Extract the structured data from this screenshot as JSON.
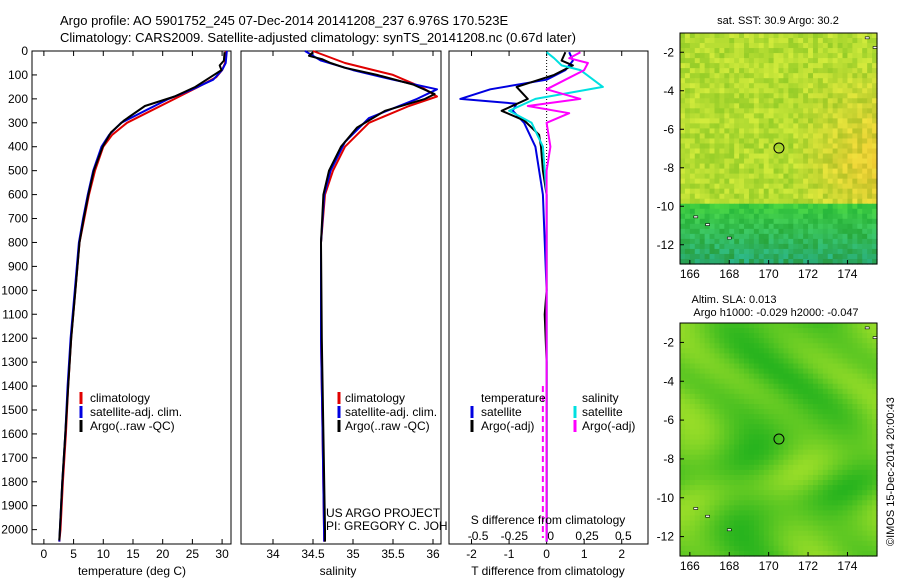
{
  "header": {
    "line1": "Argo profile: AO 5901752_245 07-Dec-2014 20141208_237 6.976S 170.523E",
    "line2": "Climatology: CARS2009. Satellite-adjusted climatology: synTS_20141208.nc (0.67d later)"
  },
  "credit": {
    "project": "US ARGO PROJECT",
    "pi": "PI: GREGORY C. JOHNSON",
    "stamp": "©IMOS 15-Dec-2014 20:00:43"
  },
  "colors": {
    "climatology": "#e00000",
    "satellite": "#0000e0",
    "argo": "#000000",
    "sal_satellite": "#00e0e0",
    "sal_argo": "#ff00ff"
  },
  "chart_data": [
    {
      "type": "line",
      "id": "temperature-profile",
      "xlabel": "temperature (deg C)",
      "ylabel": "depth",
      "xlim": [
        -2,
        31.5
      ],
      "ylim": [
        2060,
        0
      ],
      "xticks": [
        0,
        5,
        10,
        15,
        20,
        25,
        30
      ],
      "yticks": [
        0,
        100,
        200,
        300,
        400,
        500,
        600,
        700,
        800,
        900,
        1000,
        1100,
        1200,
        1300,
        1400,
        1500,
        1600,
        1700,
        1800,
        1900,
        2000
      ],
      "legend": [
        "climatology",
        "satellite-adj. clim.",
        "Argo(..raw -QC)"
      ],
      "legend_colors": [
        "#e00000",
        "#0000e0",
        "#000000"
      ],
      "series": [
        {
          "name": "climatology",
          "color": "#e00000",
          "points": [
            [
              30.6,
              0
            ],
            [
              30.5,
              50
            ],
            [
              30,
              80
            ],
            [
              29,
              110
            ],
            [
              26,
              150
            ],
            [
              22,
              200
            ],
            [
              18,
              250
            ],
            [
              14,
              300
            ],
            [
              11.5,
              350
            ],
            [
              10,
              400
            ],
            [
              8.6,
              500
            ],
            [
              7.6,
              600
            ],
            [
              6.8,
              700
            ],
            [
              6,
              800
            ],
            [
              5.3,
              1000
            ],
            [
              4.6,
              1200
            ],
            [
              4.1,
              1400
            ],
            [
              3.7,
              1600
            ],
            [
              3.2,
              1800
            ],
            [
              2.8,
              2000
            ],
            [
              2.6,
              2050
            ]
          ]
        },
        {
          "name": "satellite-adj. clim.",
          "color": "#0000e0",
          "points": [
            [
              30.8,
              0
            ],
            [
              30.6,
              50
            ],
            [
              30,
              80
            ],
            [
              28.5,
              120
            ],
            [
              25,
              160
            ],
            [
              21,
              200
            ],
            [
              17,
              250
            ],
            [
              13,
              300
            ],
            [
              11,
              350
            ],
            [
              9.7,
              400
            ],
            [
              8.3,
              500
            ],
            [
              7.4,
              600
            ],
            [
              6.6,
              700
            ],
            [
              5.9,
              800
            ],
            [
              5.2,
              1000
            ],
            [
              4.5,
              1200
            ],
            [
              4,
              1400
            ],
            [
              3.6,
              1600
            ],
            [
              3.1,
              1800
            ],
            [
              2.7,
              2000
            ],
            [
              2.6,
              2050
            ]
          ]
        },
        {
          "name": "Argo(..raw -QC)",
          "color": "#000000",
          "points": [
            [
              30.4,
              5
            ],
            [
              30.3,
              40
            ],
            [
              29.6,
              60
            ],
            [
              29.9,
              80
            ],
            [
              28,
              110
            ],
            [
              25.5,
              150
            ],
            [
              22,
              190
            ],
            [
              17,
              230
            ],
            [
              13.5,
              290
            ],
            [
              11.3,
              340
            ],
            [
              9.9,
              400
            ],
            [
              8.4,
              500
            ],
            [
              7.5,
              600
            ],
            [
              6.7,
              700
            ],
            [
              6,
              800
            ],
            [
              5.3,
              1000
            ],
            [
              4.6,
              1200
            ],
            [
              4.1,
              1400
            ],
            [
              3.6,
              1600
            ],
            [
              3.1,
              1800
            ],
            [
              2.7,
              2000
            ],
            [
              2.6,
              2045
            ]
          ]
        }
      ]
    },
    {
      "type": "line",
      "id": "salinity-profile",
      "xlabel": "salinity",
      "xlim": [
        33.6,
        36.1
      ],
      "ylim": [
        2060,
        0
      ],
      "xticks": [
        34,
        34.5,
        35,
        35.5,
        36
      ],
      "legend": [
        "climatology",
        "satellite-adj. clim.",
        "Argo(..raw -QC)"
      ],
      "legend_colors": [
        "#e00000",
        "#0000e0",
        "#000000"
      ],
      "series": [
        {
          "name": "climatology",
          "color": "#e00000",
          "points": [
            [
              34.5,
              0
            ],
            [
              34.9,
              50
            ],
            [
              35.5,
              100
            ],
            [
              35.85,
              150
            ],
            [
              36.05,
              190
            ],
            [
              35.7,
              230
            ],
            [
              35.2,
              300
            ],
            [
              34.9,
              400
            ],
            [
              34.75,
              500
            ],
            [
              34.65,
              600
            ],
            [
              34.6,
              800
            ],
            [
              34.6,
              1200
            ],
            [
              34.62,
              1600
            ],
            [
              34.64,
              2050
            ]
          ]
        },
        {
          "name": "satellite-adj. clim.",
          "color": "#0000e0",
          "points": [
            [
              34.4,
              0
            ],
            [
              34.6,
              40
            ],
            [
              35,
              80
            ],
            [
              35.5,
              120
            ],
            [
              36.05,
              160
            ],
            [
              35.8,
              200
            ],
            [
              35.2,
              280
            ],
            [
              34.9,
              380
            ],
            [
              34.72,
              500
            ],
            [
              34.64,
              600
            ],
            [
              34.6,
              800
            ],
            [
              34.6,
              1200
            ],
            [
              34.62,
              1600
            ],
            [
              34.64,
              2050
            ]
          ]
        },
        {
          "name": "Argo(..raw -QC)",
          "color": "#000000",
          "points": [
            [
              34.5,
              5
            ],
            [
              34.45,
              20
            ],
            [
              34.62,
              35
            ],
            [
              34.72,
              50
            ],
            [
              34.9,
              70
            ],
            [
              35.3,
              100
            ],
            [
              35.75,
              140
            ],
            [
              36.02,
              180
            ],
            [
              35.9,
              200
            ],
            [
              35.4,
              250
            ],
            [
              35.05,
              320
            ],
            [
              34.85,
              400
            ],
            [
              34.7,
              500
            ],
            [
              34.63,
              600
            ],
            [
              34.6,
              800
            ],
            [
              34.61,
              1200
            ],
            [
              34.63,
              1600
            ],
            [
              34.65,
              2000
            ],
            [
              34.65,
              2050
            ]
          ]
        }
      ]
    },
    {
      "type": "line",
      "id": "difference-profile",
      "xlabel": "T difference from climatology",
      "xlabel_top": "S difference from climatology",
      "xlim": [
        -2.6,
        2.7
      ],
      "ylim": [
        2060,
        0
      ],
      "xticks": [
        -2,
        -1,
        0,
        1,
        2
      ],
      "xticks_top": [
        -0.5,
        -0.25,
        0,
        0.25,
        0.5
      ],
      "legend_t": [
        "temperature",
        "satellite",
        "Argo(-adj)"
      ],
      "legend_s": [
        "salinity",
        "satellite",
        "Argo(-adj)"
      ],
      "series": [
        {
          "name": "temperature satellite",
          "color": "#0000e0",
          "points": [
            [
              0.6,
              5
            ],
            [
              0.7,
              40
            ],
            [
              0.5,
              80
            ],
            [
              0,
              120
            ],
            [
              -1.5,
              160
            ],
            [
              -2.3,
              200
            ],
            [
              -0.8,
              220
            ],
            [
              -0.9,
              250
            ],
            [
              -0.6,
              300
            ],
            [
              -0.3,
              400
            ],
            [
              -0.1,
              600
            ],
            [
              0,
              1000
            ],
            [
              0,
              2050
            ]
          ]
        },
        {
          "name": "temperature Argo(-adj)",
          "color": "#000000",
          "points": [
            [
              0.5,
              5
            ],
            [
              0.4,
              40
            ],
            [
              0.7,
              60
            ],
            [
              0.2,
              100
            ],
            [
              -0.8,
              150
            ],
            [
              -0.5,
              200
            ],
            [
              -1.2,
              250
            ],
            [
              -0.6,
              290
            ],
            [
              -0.2,
              350
            ],
            [
              -0.15,
              400
            ],
            [
              -0.1,
              500
            ],
            [
              0,
              600
            ],
            [
              0,
              1000
            ],
            [
              -0.05,
              1100
            ],
            [
              0,
              1300
            ],
            [
              0,
              2050
            ]
          ]
        },
        {
          "name": "salinity satellite",
          "color": "#00e0e0",
          "points": [
            [
              0,
              5
            ],
            [
              0.2,
              30
            ],
            [
              0.4,
              60
            ],
            [
              0.9,
              80
            ],
            [
              1.5,
              150
            ],
            [
              -0.3,
              200
            ],
            [
              -1,
              250
            ],
            [
              -0.4,
              300
            ],
            [
              -0.1,
              400
            ],
            [
              0,
              600
            ],
            [
              0,
              2050
            ]
          ]
        },
        {
          "name": "salinity Argo(-adj)",
          "color": "#ff00ff",
          "points": [
            [
              0.9,
              5
            ],
            [
              0.6,
              30
            ],
            [
              1.1,
              50
            ],
            [
              1,
              80
            ],
            [
              0.5,
              120
            ],
            [
              0,
              160
            ],
            [
              0.9,
              200
            ],
            [
              -0.5,
              230
            ],
            [
              0.6,
              260
            ],
            [
              0,
              300
            ],
            [
              0.1,
              400
            ],
            [
              0,
              500
            ],
            [
              0,
              2050
            ]
          ]
        }
      ]
    },
    {
      "type": "heatmap",
      "id": "sst-map",
      "title": "sat. SST: 30.9 Argo: 30.2",
      "xlim": [
        165.5,
        175.5
      ],
      "ylim": [
        -13,
        -1
      ],
      "xticks": [
        166,
        168,
        170,
        172,
        174
      ],
      "yticks": [
        -2,
        -4,
        -6,
        -8,
        -10,
        -12
      ],
      "marker": [
        170.523,
        -6.976
      ]
    },
    {
      "type": "heatmap",
      "id": "sla-map",
      "title": "Altim. SLA: 0.013",
      "subtitle": "Argo h1000: -0.029 h2000: -0.047",
      "xlim": [
        165.5,
        175.5
      ],
      "ylim": [
        -13,
        -1
      ],
      "xticks": [
        166,
        168,
        170,
        172,
        174
      ],
      "yticks": [
        -2,
        -4,
        -6,
        -8,
        -10,
        -12
      ],
      "marker": [
        170.523,
        -6.976
      ]
    }
  ]
}
